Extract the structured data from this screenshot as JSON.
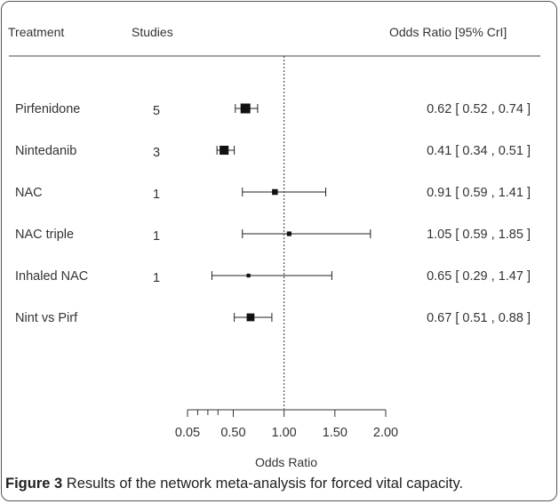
{
  "headers": {
    "treatment": "Treatment",
    "studies": "Studies",
    "effect": "Odds Ratio [95% CrI]"
  },
  "caption": {
    "label": "Figure 3",
    "text": "Results of the network meta-analysis for forced vital capacity."
  },
  "chart_data": {
    "type": "forest",
    "xlabel": "Odds Ratio",
    "x_ticks": [
      0.05,
      0.5,
      1.0,
      1.5,
      2.0
    ],
    "x_tick_labels": [
      "0.05",
      "0.50",
      "1.00",
      "1.50",
      "2.00"
    ],
    "xlim": [
      0.05,
      2.0
    ],
    "reference_line": 1.0,
    "rows": [
      {
        "treatment": "Pirfenidone",
        "studies": "5",
        "or": 0.62,
        "lo": 0.52,
        "hi": 0.74,
        "label": "0.62 [ 0.52 , 0.74 ]",
        "weight": 1.0
      },
      {
        "treatment": "Nintedanib",
        "studies": "3",
        "or": 0.41,
        "lo": 0.34,
        "hi": 0.51,
        "label": "0.41 [ 0.34 , 0.51 ]",
        "weight": 0.9
      },
      {
        "treatment": "NAC",
        "studies": "1",
        "or": 0.91,
        "lo": 0.59,
        "hi": 1.41,
        "label": "0.91 [ 0.59 , 1.41 ]",
        "weight": 0.5
      },
      {
        "treatment": "NAC triple",
        "studies": "1",
        "or": 1.05,
        "lo": 0.59,
        "hi": 1.85,
        "label": "1.05 [ 0.59 , 1.85 ]",
        "weight": 0.35
      },
      {
        "treatment": "Inhaled NAC",
        "studies": "1",
        "or": 0.65,
        "lo": 0.29,
        "hi": 1.47,
        "label": "0.65 [ 0.29 , 1.47 ]",
        "weight": 0.25
      },
      {
        "treatment": "Nint vs Pirf",
        "studies": "",
        "or": 0.67,
        "lo": 0.51,
        "hi": 0.88,
        "label": "0.67 [ 0.51 , 0.88 ]",
        "weight": 0.75
      }
    ],
    "extra_ticks_unlabeled": [
      0.15,
      0.25,
      0.35
    ]
  }
}
